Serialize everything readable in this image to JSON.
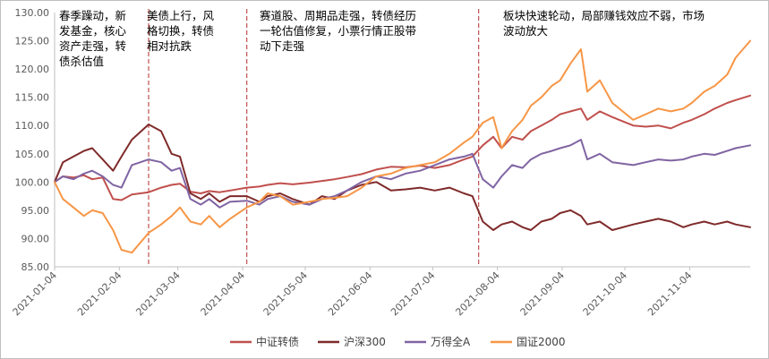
{
  "chart_data": {
    "type": "line",
    "x_ticks": [
      "2021-01-04",
      "2021-02-04",
      "2021-03-04",
      "2021-04-04",
      "2021-05-04",
      "2021-06-04",
      "2021-07-04",
      "2021-08-04",
      "2021-09-04",
      "2021-10-04",
      "2021-11-04"
    ],
    "y_ticks": [
      "85.00",
      "90.00",
      "95.00",
      "100.00",
      "105.00",
      "110.00",
      "115.00",
      "120.00",
      "125.00",
      "130.00"
    ],
    "ylim": [
      85,
      130
    ],
    "xlim": [
      "2021-01-04",
      "2021-12-03"
    ],
    "grid": false,
    "legend_position": "bottom",
    "period_dividers": [
      "2021-02-18",
      "2021-04-06",
      "2021-07-26"
    ],
    "annotations": [
      {
        "lines": [
          "春季躁动，新",
          "发基金，核心",
          "资产走强，转",
          "债杀估值"
        ]
      },
      {
        "lines": [
          "美债上行，风",
          "格切换，转债",
          "相对抗跌"
        ]
      },
      {
        "lines": [
          "赛道股、周期品走强，转债经历",
          "一轮估值修复，小票行情正股带",
          "动下走强"
        ]
      },
      {
        "lines": [
          "板块快速轮动，局部赚钱效应不弱，市场",
          "波动放大"
        ]
      }
    ],
    "series": [
      {
        "name": "中证转债",
        "color": "#c0504d",
        "points": [
          [
            "2021-01-04",
            100
          ],
          [
            "2021-01-08",
            101
          ],
          [
            "2021-01-13",
            100.8
          ],
          [
            "2021-01-18",
            101.2
          ],
          [
            "2021-01-22",
            100.5
          ],
          [
            "2021-01-27",
            100.8
          ],
          [
            "2021-02-01",
            97
          ],
          [
            "2021-02-05",
            96.8
          ],
          [
            "2021-02-10",
            97.8
          ],
          [
            "2021-02-18",
            98.2
          ],
          [
            "2021-02-24",
            99
          ],
          [
            "2021-03-01",
            99.5
          ],
          [
            "2021-03-05",
            99.7
          ],
          [
            "2021-03-10",
            98.3
          ],
          [
            "2021-03-15",
            98
          ],
          [
            "2021-03-19",
            98.4
          ],
          [
            "2021-03-24",
            98.2
          ],
          [
            "2021-03-29",
            98.5
          ],
          [
            "2021-04-06",
            99
          ],
          [
            "2021-04-12",
            99.2
          ],
          [
            "2021-04-16",
            99.5
          ],
          [
            "2021-04-22",
            99.8
          ],
          [
            "2021-04-28",
            99.6
          ],
          [
            "2021-05-06",
            99.9
          ],
          [
            "2021-05-12",
            100.2
          ],
          [
            "2021-05-18",
            100.5
          ],
          [
            "2021-05-24",
            100.9
          ],
          [
            "2021-05-31",
            101.4
          ],
          [
            "2021-06-07",
            102.2
          ],
          [
            "2021-06-14",
            102.7
          ],
          [
            "2021-06-21",
            102.6
          ],
          [
            "2021-06-28",
            102.9
          ],
          [
            "2021-07-05",
            102.5
          ],
          [
            "2021-07-12",
            103
          ],
          [
            "2021-07-19",
            104
          ],
          [
            "2021-07-23",
            104.5
          ],
          [
            "2021-07-28",
            106.5
          ],
          [
            "2021-08-02",
            108
          ],
          [
            "2021-08-06",
            106
          ],
          [
            "2021-08-11",
            108
          ],
          [
            "2021-08-16",
            107.5
          ],
          [
            "2021-08-20",
            109
          ],
          [
            "2021-08-25",
            110
          ],
          [
            "2021-08-30",
            111
          ],
          [
            "2021-09-03",
            112
          ],
          [
            "2021-09-08",
            112.5
          ],
          [
            "2021-09-13",
            113
          ],
          [
            "2021-09-16",
            111
          ],
          [
            "2021-09-22",
            112.5
          ],
          [
            "2021-09-28",
            111.5
          ],
          [
            "2021-10-08",
            110
          ],
          [
            "2021-10-14",
            109.8
          ],
          [
            "2021-10-20",
            110
          ],
          [
            "2021-10-26",
            109.5
          ],
          [
            "2021-11-01",
            110.5
          ],
          [
            "2021-11-05",
            111
          ],
          [
            "2021-11-11",
            112
          ],
          [
            "2021-11-16",
            113
          ],
          [
            "2021-11-22",
            114
          ],
          [
            "2021-11-26",
            114.5
          ],
          [
            "2021-12-03",
            115.3
          ]
        ]
      },
      {
        "name": "沪深300",
        "color": "#7f2a2a",
        "points": [
          [
            "2021-01-04",
            100
          ],
          [
            "2021-01-08",
            103.5
          ],
          [
            "2021-01-13",
            104.5
          ],
          [
            "2021-01-18",
            105.5
          ],
          [
            "2021-01-22",
            106
          ],
          [
            "2021-01-27",
            104
          ],
          [
            "2021-02-01",
            102
          ],
          [
            "2021-02-05",
            104.5
          ],
          [
            "2021-02-10",
            107.5
          ],
          [
            "2021-02-18",
            110.2
          ],
          [
            "2021-02-24",
            109
          ],
          [
            "2021-03-01",
            105
          ],
          [
            "2021-03-05",
            104.5
          ],
          [
            "2021-03-10",
            98
          ],
          [
            "2021-03-15",
            97
          ],
          [
            "2021-03-19",
            98
          ],
          [
            "2021-03-24",
            96.5
          ],
          [
            "2021-03-29",
            97.5
          ],
          [
            "2021-04-06",
            97.5
          ],
          [
            "2021-04-12",
            96.5
          ],
          [
            "2021-04-16",
            97.5
          ],
          [
            "2021-04-22",
            98
          ],
          [
            "2021-04-28",
            97
          ],
          [
            "2021-05-06",
            96
          ],
          [
            "2021-05-12",
            97.5
          ],
          [
            "2021-05-18",
            97
          ],
          [
            "2021-05-24",
            98.5
          ],
          [
            "2021-05-31",
            99.5
          ],
          [
            "2021-06-07",
            100
          ],
          [
            "2021-06-14",
            98.5
          ],
          [
            "2021-06-21",
            98.7
          ],
          [
            "2021-06-28",
            99
          ],
          [
            "2021-07-05",
            98.5
          ],
          [
            "2021-07-12",
            99
          ],
          [
            "2021-07-19",
            98
          ],
          [
            "2021-07-23",
            97.5
          ],
          [
            "2021-07-28",
            93
          ],
          [
            "2021-08-02",
            91.5
          ],
          [
            "2021-08-06",
            92.5
          ],
          [
            "2021-08-11",
            93
          ],
          [
            "2021-08-16",
            92
          ],
          [
            "2021-08-20",
            91.5
          ],
          [
            "2021-08-25",
            93
          ],
          [
            "2021-08-30",
            93.5
          ],
          [
            "2021-09-03",
            94.5
          ],
          [
            "2021-09-08",
            95
          ],
          [
            "2021-09-13",
            94
          ],
          [
            "2021-09-16",
            92.5
          ],
          [
            "2021-09-22",
            93
          ],
          [
            "2021-09-28",
            91.5
          ],
          [
            "2021-10-08",
            92.5
          ],
          [
            "2021-10-14",
            93
          ],
          [
            "2021-10-20",
            93.5
          ],
          [
            "2021-10-26",
            93
          ],
          [
            "2021-11-01",
            92
          ],
          [
            "2021-11-05",
            92.5
          ],
          [
            "2021-11-11",
            93
          ],
          [
            "2021-11-16",
            92.5
          ],
          [
            "2021-11-22",
            93
          ],
          [
            "2021-11-26",
            92.5
          ],
          [
            "2021-12-03",
            92
          ]
        ]
      },
      {
        "name": "万得全A",
        "color": "#8064a2",
        "points": [
          [
            "2021-01-04",
            100
          ],
          [
            "2021-01-08",
            101
          ],
          [
            "2021-01-13",
            100.5
          ],
          [
            "2021-01-18",
            101.5
          ],
          [
            "2021-01-22",
            102
          ],
          [
            "2021-01-27",
            101
          ],
          [
            "2021-02-01",
            99.5
          ],
          [
            "2021-02-05",
            99
          ],
          [
            "2021-02-10",
            103
          ],
          [
            "2021-02-18",
            104
          ],
          [
            "2021-02-24",
            103.5
          ],
          [
            "2021-03-01",
            102
          ],
          [
            "2021-03-05",
            102.5
          ],
          [
            "2021-03-10",
            97
          ],
          [
            "2021-03-15",
            96
          ],
          [
            "2021-03-19",
            97
          ],
          [
            "2021-03-24",
            95.5
          ],
          [
            "2021-03-29",
            96.5
          ],
          [
            "2021-04-06",
            96.7
          ],
          [
            "2021-04-12",
            96
          ],
          [
            "2021-04-16",
            97
          ],
          [
            "2021-04-22",
            97.5
          ],
          [
            "2021-04-28",
            96.5
          ],
          [
            "2021-05-06",
            96
          ],
          [
            "2021-05-12",
            97
          ],
          [
            "2021-05-18",
            97.5
          ],
          [
            "2021-05-24",
            98.5
          ],
          [
            "2021-05-31",
            100
          ],
          [
            "2021-06-07",
            101
          ],
          [
            "2021-06-14",
            100.5
          ],
          [
            "2021-06-21",
            101.5
          ],
          [
            "2021-06-28",
            102
          ],
          [
            "2021-07-05",
            103
          ],
          [
            "2021-07-12",
            104
          ],
          [
            "2021-07-19",
            104.5
          ],
          [
            "2021-07-23",
            105
          ],
          [
            "2021-07-28",
            100.5
          ],
          [
            "2021-08-02",
            99
          ],
          [
            "2021-08-06",
            101
          ],
          [
            "2021-08-11",
            103
          ],
          [
            "2021-08-16",
            102.5
          ],
          [
            "2021-08-20",
            104
          ],
          [
            "2021-08-25",
            105
          ],
          [
            "2021-08-30",
            105.5
          ],
          [
            "2021-09-03",
            106
          ],
          [
            "2021-09-08",
            106.5
          ],
          [
            "2021-09-13",
            107.5
          ],
          [
            "2021-09-16",
            104
          ],
          [
            "2021-09-22",
            105
          ],
          [
            "2021-09-28",
            103.5
          ],
          [
            "2021-10-08",
            103
          ],
          [
            "2021-10-14",
            103.5
          ],
          [
            "2021-10-20",
            104
          ],
          [
            "2021-10-26",
            103.8
          ],
          [
            "2021-11-01",
            104
          ],
          [
            "2021-11-05",
            104.5
          ],
          [
            "2021-11-11",
            105
          ],
          [
            "2021-11-16",
            104.8
          ],
          [
            "2021-11-22",
            105.5
          ],
          [
            "2021-11-26",
            106
          ],
          [
            "2021-12-03",
            106.5
          ]
        ]
      },
      {
        "name": "国证2000",
        "color": "#f79646",
        "points": [
          [
            "2021-01-04",
            100
          ],
          [
            "2021-01-08",
            97
          ],
          [
            "2021-01-13",
            95.5
          ],
          [
            "2021-01-18",
            94
          ],
          [
            "2021-01-22",
            95
          ],
          [
            "2021-01-27",
            94.5
          ],
          [
            "2021-02-01",
            91.5
          ],
          [
            "2021-02-05",
            88
          ],
          [
            "2021-02-10",
            87.5
          ],
          [
            "2021-02-18",
            91
          ],
          [
            "2021-02-24",
            92.5
          ],
          [
            "2021-03-01",
            94
          ],
          [
            "2021-03-05",
            95.5
          ],
          [
            "2021-03-10",
            93
          ],
          [
            "2021-03-15",
            92.5
          ],
          [
            "2021-03-19",
            94
          ],
          [
            "2021-03-24",
            92
          ],
          [
            "2021-03-29",
            93.5
          ],
          [
            "2021-04-06",
            95.5
          ],
          [
            "2021-04-12",
            96.5
          ],
          [
            "2021-04-16",
            98
          ],
          [
            "2021-04-22",
            97.5
          ],
          [
            "2021-04-28",
            96
          ],
          [
            "2021-05-06",
            96.5
          ],
          [
            "2021-05-12",
            97
          ],
          [
            "2021-05-18",
            97.2
          ],
          [
            "2021-05-24",
            97.5
          ],
          [
            "2021-05-31",
            99
          ],
          [
            "2021-06-07",
            101
          ],
          [
            "2021-06-14",
            101.5
          ],
          [
            "2021-06-21",
            102.5
          ],
          [
            "2021-06-28",
            103
          ],
          [
            "2021-07-05",
            103.5
          ],
          [
            "2021-07-12",
            105
          ],
          [
            "2021-07-19",
            107
          ],
          [
            "2021-07-23",
            108
          ],
          [
            "2021-07-28",
            110.5
          ],
          [
            "2021-08-02",
            111.5
          ],
          [
            "2021-08-06",
            106
          ],
          [
            "2021-08-11",
            109
          ],
          [
            "2021-08-16",
            111
          ],
          [
            "2021-08-20",
            113.5
          ],
          [
            "2021-08-25",
            115
          ],
          [
            "2021-08-30",
            117
          ],
          [
            "2021-09-03",
            118
          ],
          [
            "2021-09-08",
            121
          ],
          [
            "2021-09-13",
            123.5
          ],
          [
            "2021-09-16",
            116
          ],
          [
            "2021-09-22",
            118
          ],
          [
            "2021-09-28",
            114
          ],
          [
            "2021-10-08",
            111
          ],
          [
            "2021-10-14",
            112
          ],
          [
            "2021-10-20",
            113
          ],
          [
            "2021-10-26",
            112.5
          ],
          [
            "2021-11-01",
            113
          ],
          [
            "2021-11-05",
            114
          ],
          [
            "2021-11-11",
            116
          ],
          [
            "2021-11-16",
            117
          ],
          [
            "2021-11-22",
            119
          ],
          [
            "2021-11-26",
            122
          ],
          [
            "2021-12-03",
            125
          ]
        ]
      }
    ]
  }
}
